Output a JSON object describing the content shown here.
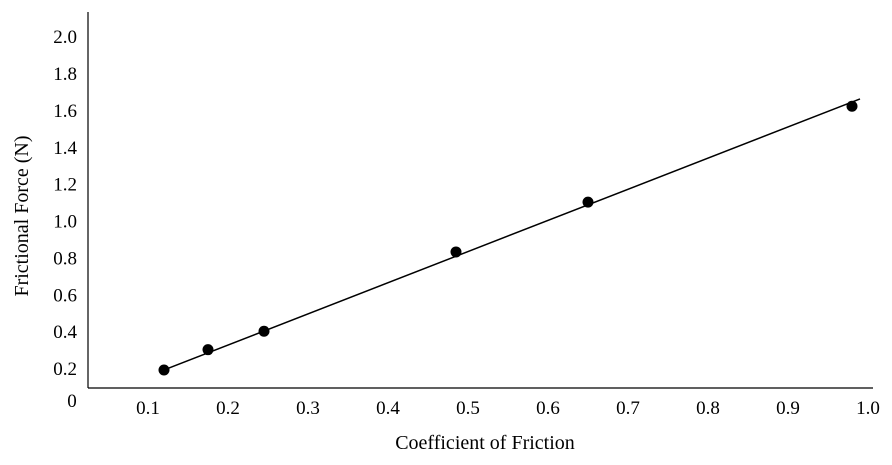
{
  "chart_data": {
    "type": "scatter",
    "title": "",
    "xlabel": "Coefficient of Friction",
    "ylabel": "Frictional Force (N)",
    "xlim": [
      0,
      1.0
    ],
    "ylim": [
      0,
      2.1
    ],
    "x_ticks": [
      "0.1",
      "0.2",
      "0.3",
      "0.4",
      "0.5",
      "0.6",
      "0.7",
      "0.8",
      "0.9",
      "1.0"
    ],
    "y_ticks": [
      "0.2",
      "0.4",
      "0.6",
      "0.8",
      "1.0",
      "1.2",
      "1.4",
      "1.6",
      "1.8",
      "2.0"
    ],
    "origin_label": "0",
    "grid": false,
    "legend": "none",
    "series": [
      {
        "points": [
          {
            "x": 0.12,
            "y": 0.19
          },
          {
            "x": 0.175,
            "y": 0.3
          },
          {
            "x": 0.245,
            "y": 0.4
          },
          {
            "x": 0.485,
            "y": 0.83
          },
          {
            "x": 0.65,
            "y": 1.1
          },
          {
            "x": 0.98,
            "y": 1.62
          }
        ]
      }
    ],
    "trendline": {
      "type": "linear",
      "x_start": 0.12,
      "y_start": 0.19,
      "x_end": 0.99,
      "y_end": 1.66
    }
  }
}
